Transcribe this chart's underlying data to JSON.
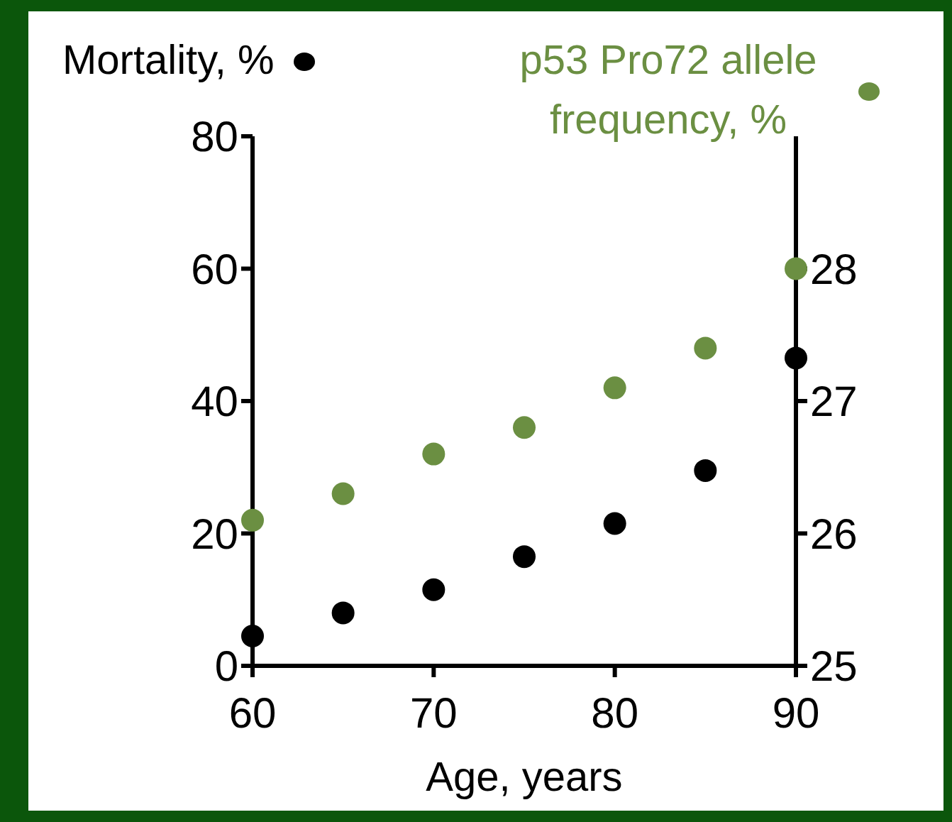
{
  "chart_data": {
    "type": "scatter",
    "xlabel": "Age, years",
    "x": [
      60,
      65,
      70,
      75,
      80,
      85,
      90
    ],
    "xlim": [
      60,
      90
    ],
    "xticks": [
      60,
      70,
      80,
      90
    ],
    "ylim": [
      0,
      80
    ],
    "yticks": [
      0,
      20,
      40,
      60,
      80
    ],
    "y2lim": [
      25,
      29
    ],
    "y2ticks": [
      25,
      26,
      27,
      28
    ],
    "series": [
      {
        "name": "Mortality, %",
        "color": "#000000",
        "values": [
          4.5,
          8,
          11.5,
          16.5,
          21.5,
          29.5,
          46.5
        ]
      },
      {
        "name": "p53 Pro72 allele frequency, %",
        "color": "#6b8f42",
        "axis": "y2",
        "values": [
          26.1,
          26.3,
          26.6,
          26.8,
          27.1,
          27.4,
          28.0
        ]
      }
    ],
    "legend": "top",
    "marker": "circle"
  }
}
